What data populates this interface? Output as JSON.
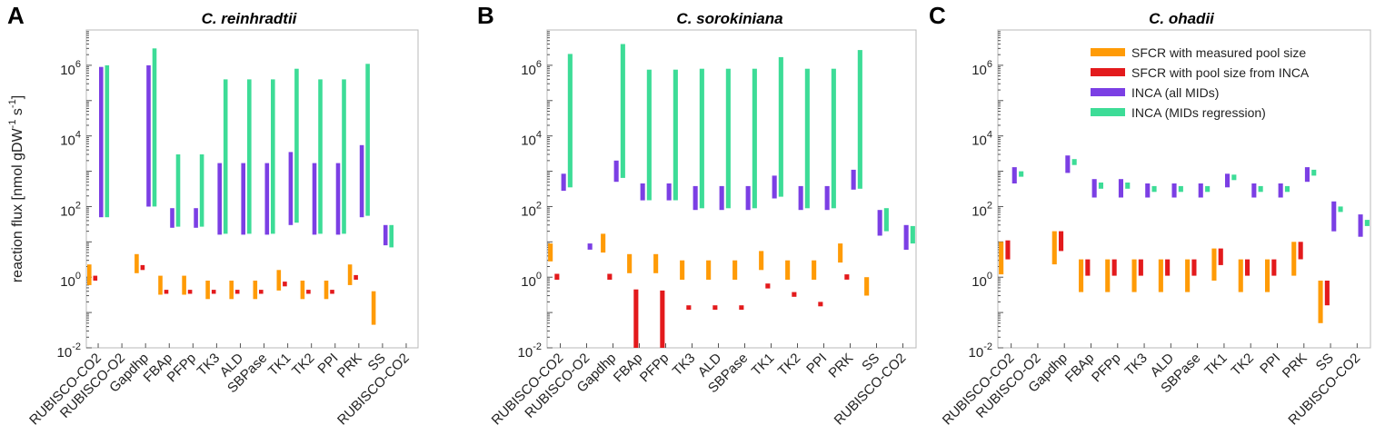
{
  "colors": {
    "sfcr_measured": "#ff9b06",
    "sfcr_inca": "#e31a1c",
    "inca_all": "#7b3fe4",
    "inca_regression": "#3ddc97"
  },
  "ylabel_parts": [
    "reaction flux [nmol gDW",
    "-1",
    " s",
    "-1",
    "]"
  ],
  "ytick_labels": [
    "10^-2",
    "10^0",
    "10^2",
    "10^4",
    "10^6"
  ],
  "chart_data": [
    {
      "type": "bar",
      "panel": "A",
      "title": "C. reinhradtii",
      "yscale": "log",
      "ylim": [
        0.01,
        10000000
      ],
      "ylabel": "reaction flux [nmol gDW-1 s-1]",
      "categories": [
        "RUBISCO-CO2",
        "RUBISCO-O2",
        "Gapdhp",
        "FBAp",
        "PFPp",
        "TK3",
        "ALD",
        "SBPase",
        "TK1",
        "TK2",
        "PPI",
        "PRK",
        "SS",
        "RUBISCO-CO2"
      ],
      "series": [
        {
          "name": "SFCR with measured pool size",
          "ranges": [
            [
              0.6,
              2.3
            ],
            null,
            [
              1.3,
              4.5
            ],
            [
              0.32,
              1.1
            ],
            [
              0.32,
              1.1
            ],
            [
              0.24,
              0.8
            ],
            [
              0.24,
              0.8
            ],
            [
              0.24,
              0.8
            ],
            [
              0.42,
              1.6
            ],
            [
              0.24,
              0.8
            ],
            [
              0.24,
              0.8
            ],
            [
              0.6,
              2.3
            ],
            [
              0.045,
              0.4
            ],
            null
          ]
        },
        {
          "name": "SFCR with pool size from INCA",
          "ranges": [
            [
              0.8,
              1.1
            ],
            null,
            [
              1.6,
              2.2
            ],
            [
              0.34,
              0.44
            ],
            [
              0.34,
              0.44
            ],
            [
              0.34,
              0.44
            ],
            [
              0.34,
              0.44
            ],
            [
              0.34,
              0.44
            ],
            [
              0.55,
              0.75
            ],
            [
              0.34,
              0.44
            ],
            [
              0.34,
              0.44
            ],
            [
              0.85,
              1.15
            ],
            null,
            null
          ]
        },
        {
          "name": "INCA (all MIDs)",
          "ranges": [
            [
              50,
              900000
            ],
            null,
            [
              100,
              1000000
            ],
            [
              25,
              90
            ],
            [
              25,
              90
            ],
            [
              16,
              1700
            ],
            [
              16,
              1700
            ],
            [
              16,
              1700
            ],
            [
              30,
              3500
            ],
            [
              16,
              1700
            ],
            [
              16,
              1700
            ],
            [
              50,
              5500
            ],
            [
              8,
              30
            ],
            null
          ]
        },
        {
          "name": "INCA (MIDs regression)",
          "ranges": [
            [
              50,
              1000000
            ],
            null,
            [
              100,
              3000000
            ],
            [
              27,
              3000
            ],
            [
              27,
              3000
            ],
            [
              17,
              400000
            ],
            [
              17,
              400000
            ],
            [
              17,
              400000
            ],
            [
              35,
              800000
            ],
            [
              17,
              400000
            ],
            [
              17,
              400000
            ],
            [
              55,
              1100000
            ],
            [
              7,
              30
            ],
            null
          ]
        }
      ]
    },
    {
      "type": "bar",
      "panel": "B",
      "title": "C. sorokiniana",
      "yscale": "log",
      "ylim": [
        0.01,
        10000000
      ],
      "categories": [
        "RUBISCO-CO2",
        "RUBISCO-O2",
        "Gapdhp",
        "FBAp",
        "PFPp",
        "TK3",
        "ALD",
        "SBPase",
        "TK1",
        "TK2",
        "PPI",
        "PRK",
        "SS",
        "RUBISCO-CO2"
      ],
      "series": [
        {
          "name": "SFCR with measured pool size",
          "ranges": [
            [
              2.8,
              9
            ],
            null,
            [
              5,
              17
            ],
            [
              1.3,
              4.5
            ],
            [
              1.3,
              4.5
            ],
            [
              0.85,
              3
            ],
            [
              0.85,
              3
            ],
            [
              0.85,
              3
            ],
            [
              1.6,
              5.5
            ],
            [
              0.85,
              3
            ],
            [
              0.85,
              3
            ],
            [
              2.6,
              9
            ],
            [
              0.3,
              1
            ],
            null
          ]
        },
        {
          "name": "SFCR with pool size from INCA",
          "ranges": [
            [
              0.85,
              1.25
            ],
            null,
            [
              0.85,
              1.25
            ],
            [
              0.01,
              0.45
            ],
            [
              0.01,
              0.42
            ],
            [
              0.12,
              0.16
            ],
            [
              0.12,
              0.16
            ],
            [
              0.12,
              0.16
            ],
            [
              0.48,
              0.66
            ],
            [
              0.28,
              0.38
            ],
            [
              0.15,
              0.2
            ],
            [
              0.85,
              1.2
            ],
            null,
            null
          ]
        },
        {
          "name": "INCA (all MIDs)",
          "ranges": [
            [
              280,
              850
            ],
            [
              6,
              9
            ],
            [
              500,
              2000
            ],
            [
              150,
              450
            ],
            [
              150,
              450
            ],
            [
              80,
              380
            ],
            [
              80,
              380
            ],
            [
              80,
              380
            ],
            [
              170,
              750
            ],
            [
              80,
              380
            ],
            [
              80,
              380
            ],
            [
              300,
              1100
            ],
            [
              15,
              80
            ],
            [
              6,
              30
            ]
          ]
        },
        {
          "name": "INCA (MIDs regression)",
          "ranges": [
            [
              350,
              2100000
            ],
            null,
            [
              650,
              4000000
            ],
            [
              150,
              750000
            ],
            [
              150,
              750000
            ],
            [
              90,
              800000
            ],
            [
              90,
              800000
            ],
            [
              90,
              800000
            ],
            [
              190,
              1700000
            ],
            [
              90,
              800000
            ],
            [
              90,
              800000
            ],
            [
              320,
              2700000
            ],
            [
              20,
              90
            ],
            [
              9,
              28
            ]
          ]
        }
      ]
    },
    {
      "type": "bar",
      "panel": "C",
      "title": "C. ohadii",
      "yscale": "log",
      "ylim": [
        0.01,
        10000000
      ],
      "categories": [
        "RUBISCO-CO2",
        "RUBISCO-O2",
        "Gapdhp",
        "FBAp",
        "PFPp",
        "TK3",
        "ALD",
        "SBPase",
        "TK1",
        "TK2",
        "PPI",
        "PRK",
        "SS",
        "RUBISCO-CO2"
      ],
      "legend": {
        "position": "top-right",
        "entries": [
          "SFCR with measured pool size",
          "SFCR with pool size from INCA",
          "INCA (all MIDs)",
          "INCA (MIDs regression)"
        ]
      },
      "series": [
        {
          "name": "SFCR with measured pool size",
          "ranges": [
            [
              1.2,
              10
            ],
            null,
            [
              2.3,
              20
            ],
            [
              0.38,
              3.2
            ],
            [
              0.38,
              3.2
            ],
            [
              0.38,
              3.2
            ],
            [
              0.38,
              3.2
            ],
            [
              0.38,
              3.2
            ],
            [
              0.8,
              6.5
            ],
            [
              0.38,
              3.2
            ],
            [
              0.38,
              3.2
            ],
            [
              1.1,
              10
            ],
            [
              0.05,
              0.8
            ],
            null
          ]
        },
        {
          "name": "SFCR with pool size from INCA",
          "ranges": [
            [
              3.2,
              11
            ],
            null,
            [
              5.5,
              20
            ],
            [
              1.1,
              3.2
            ],
            [
              1.1,
              3.2
            ],
            [
              1.1,
              3.2
            ],
            [
              1.1,
              3.2
            ],
            [
              1.1,
              3.2
            ],
            [
              2.2,
              6.5
            ],
            [
              1.1,
              3.2
            ],
            [
              1.1,
              3.2
            ],
            [
              3.2,
              10
            ],
            [
              0.16,
              0.8
            ],
            null
          ]
        },
        {
          "name": "INCA (all MIDs)",
          "ranges": [
            [
              450,
              1300
            ],
            null,
            [
              900,
              2800
            ],
            [
              180,
              600
            ],
            [
              180,
              600
            ],
            [
              180,
              450
            ],
            [
              180,
              450
            ],
            [
              180,
              450
            ],
            [
              350,
              850
            ],
            [
              180,
              450
            ],
            [
              180,
              450
            ],
            [
              500,
              1300
            ],
            [
              20,
              140
            ],
            [
              14,
              60
            ]
          ]
        },
        {
          "name": "INCA (MIDs regression)",
          "ranges": [
            [
              700,
              1000
            ],
            null,
            [
              1500,
              2200
            ],
            [
              320,
              480
            ],
            [
              320,
              480
            ],
            [
              260,
              380
            ],
            [
              260,
              380
            ],
            [
              260,
              380
            ],
            [
              560,
              800
            ],
            [
              260,
              380
            ],
            [
              260,
              380
            ],
            [
              750,
              1100
            ],
            [
              70,
              100
            ],
            [
              28,
              42
            ]
          ]
        }
      ]
    }
  ]
}
